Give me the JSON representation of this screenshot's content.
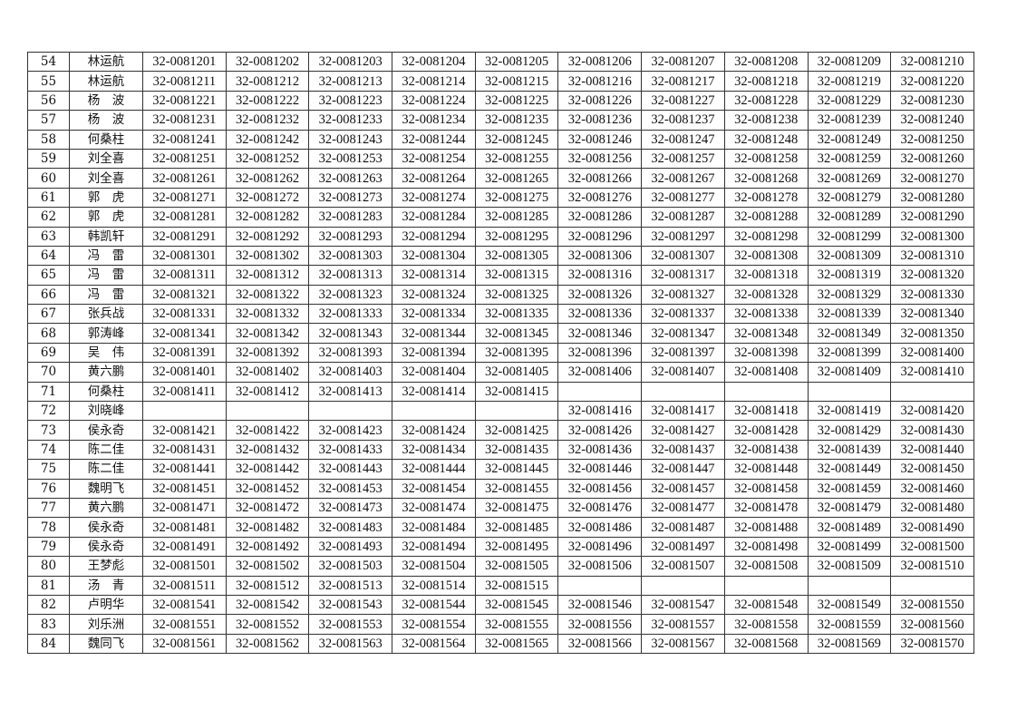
{
  "table": {
    "rows": [
      {
        "no": "54",
        "name": "林运航",
        "codes": [
          "32-0081201",
          "32-0081202",
          "32-0081203",
          "32-0081204",
          "32-0081205",
          "32-0081206",
          "32-0081207",
          "32-0081208",
          "32-0081209",
          "32-0081210"
        ]
      },
      {
        "no": "55",
        "name": "林运航",
        "codes": [
          "32-0081211",
          "32-0081212",
          "32-0081213",
          "32-0081214",
          "32-0081215",
          "32-0081216",
          "32-0081217",
          "32-0081218",
          "32-0081219",
          "32-0081220"
        ]
      },
      {
        "no": "56",
        "name": "杨　波",
        "codes": [
          "32-0081221",
          "32-0081222",
          "32-0081223",
          "32-0081224",
          "32-0081225",
          "32-0081226",
          "32-0081227",
          "32-0081228",
          "32-0081229",
          "32-0081230"
        ]
      },
      {
        "no": "57",
        "name": "杨　波",
        "codes": [
          "32-0081231",
          "32-0081232",
          "32-0081233",
          "32-0081234",
          "32-0081235",
          "32-0081236",
          "32-0081237",
          "32-0081238",
          "32-0081239",
          "32-0081240"
        ]
      },
      {
        "no": "58",
        "name": "何桑柱",
        "codes": [
          "32-0081241",
          "32-0081242",
          "32-0081243",
          "32-0081244",
          "32-0081245",
          "32-0081246",
          "32-0081247",
          "32-0081248",
          "32-0081249",
          "32-0081250"
        ]
      },
      {
        "no": "59",
        "name": "刘全喜",
        "codes": [
          "32-0081251",
          "32-0081252",
          "32-0081253",
          "32-0081254",
          "32-0081255",
          "32-0081256",
          "32-0081257",
          "32-0081258",
          "32-0081259",
          "32-0081260"
        ]
      },
      {
        "no": "60",
        "name": "刘全喜",
        "codes": [
          "32-0081261",
          "32-0081262",
          "32-0081263",
          "32-0081264",
          "32-0081265",
          "32-0081266",
          "32-0081267",
          "32-0081268",
          "32-0081269",
          "32-0081270"
        ]
      },
      {
        "no": "61",
        "name": "郭　虎",
        "codes": [
          "32-0081271",
          "32-0081272",
          "32-0081273",
          "32-0081274",
          "32-0081275",
          "32-0081276",
          "32-0081277",
          "32-0081278",
          "32-0081279",
          "32-0081280"
        ]
      },
      {
        "no": "62",
        "name": "郭　虎",
        "codes": [
          "32-0081281",
          "32-0081282",
          "32-0081283",
          "32-0081284",
          "32-0081285",
          "32-0081286",
          "32-0081287",
          "32-0081288",
          "32-0081289",
          "32-0081290"
        ]
      },
      {
        "no": "63",
        "name": "韩凯轩",
        "codes": [
          "32-0081291",
          "32-0081292",
          "32-0081293",
          "32-0081294",
          "32-0081295",
          "32-0081296",
          "32-0081297",
          "32-0081298",
          "32-0081299",
          "32-0081300"
        ]
      },
      {
        "no": "64",
        "name": "冯　雷",
        "codes": [
          "32-0081301",
          "32-0081302",
          "32-0081303",
          "32-0081304",
          "32-0081305",
          "32-0081306",
          "32-0081307",
          "32-0081308",
          "32-0081309",
          "32-0081310"
        ]
      },
      {
        "no": "65",
        "name": "冯　雷",
        "codes": [
          "32-0081311",
          "32-0081312",
          "32-0081313",
          "32-0081314",
          "32-0081315",
          "32-0081316",
          "32-0081317",
          "32-0081318",
          "32-0081319",
          "32-0081320"
        ]
      },
      {
        "no": "66",
        "name": "冯　雷",
        "codes": [
          "32-0081321",
          "32-0081322",
          "32-0081323",
          "32-0081324",
          "32-0081325",
          "32-0081326",
          "32-0081327",
          "32-0081328",
          "32-0081329",
          "32-0081330"
        ]
      },
      {
        "no": "67",
        "name": "张兵战",
        "codes": [
          "32-0081331",
          "32-0081332",
          "32-0081333",
          "32-0081334",
          "32-0081335",
          "32-0081336",
          "32-0081337",
          "32-0081338",
          "32-0081339",
          "32-0081340"
        ]
      },
      {
        "no": "68",
        "name": "郭涛峰",
        "codes": [
          "32-0081341",
          "32-0081342",
          "32-0081343",
          "32-0081344",
          "32-0081345",
          "32-0081346",
          "32-0081347",
          "32-0081348",
          "32-0081349",
          "32-0081350"
        ]
      },
      {
        "no": "69",
        "name": "吴　伟",
        "codes": [
          "32-0081391",
          "32-0081392",
          "32-0081393",
          "32-0081394",
          "32-0081395",
          "32-0081396",
          "32-0081397",
          "32-0081398",
          "32-0081399",
          "32-0081400"
        ]
      },
      {
        "no": "70",
        "name": "黄六鹏",
        "codes": [
          "32-0081401",
          "32-0081402",
          "32-0081403",
          "32-0081404",
          "32-0081405",
          "32-0081406",
          "32-0081407",
          "32-0081408",
          "32-0081409",
          "32-0081410"
        ]
      },
      {
        "no": "71",
        "name": "何桑柱",
        "codes": [
          "32-0081411",
          "32-0081412",
          "32-0081413",
          "32-0081414",
          "32-0081415",
          "",
          "",
          "",
          "",
          ""
        ]
      },
      {
        "no": "72",
        "name": "刘晓峰",
        "codes": [
          "",
          "",
          "",
          "",
          "",
          "32-0081416",
          "32-0081417",
          "32-0081418",
          "32-0081419",
          "32-0081420"
        ]
      },
      {
        "no": "73",
        "name": "侯永奇",
        "codes": [
          "32-0081421",
          "32-0081422",
          "32-0081423",
          "32-0081424",
          "32-0081425",
          "32-0081426",
          "32-0081427",
          "32-0081428",
          "32-0081429",
          "32-0081430"
        ]
      },
      {
        "no": "74",
        "name": "陈二佳",
        "codes": [
          "32-0081431",
          "32-0081432",
          "32-0081433",
          "32-0081434",
          "32-0081435",
          "32-0081436",
          "32-0081437",
          "32-0081438",
          "32-0081439",
          "32-0081440"
        ]
      },
      {
        "no": "75",
        "name": "陈二佳",
        "codes": [
          "32-0081441",
          "32-0081442",
          "32-0081443",
          "32-0081444",
          "32-0081445",
          "32-0081446",
          "32-0081447",
          "32-0081448",
          "32-0081449",
          "32-0081450"
        ]
      },
      {
        "no": "76",
        "name": "魏明飞",
        "codes": [
          "32-0081451",
          "32-0081452",
          "32-0081453",
          "32-0081454",
          "32-0081455",
          "32-0081456",
          "32-0081457",
          "32-0081458",
          "32-0081459",
          "32-0081460"
        ]
      },
      {
        "no": "77",
        "name": "黄六鹏",
        "codes": [
          "32-0081471",
          "32-0081472",
          "32-0081473",
          "32-0081474",
          "32-0081475",
          "32-0081476",
          "32-0081477",
          "32-0081478",
          "32-0081479",
          "32-0081480"
        ]
      },
      {
        "no": "78",
        "name": "侯永奇",
        "codes": [
          "32-0081481",
          "32-0081482",
          "32-0081483",
          "32-0081484",
          "32-0081485",
          "32-0081486",
          "32-0081487",
          "32-0081488",
          "32-0081489",
          "32-0081490"
        ]
      },
      {
        "no": "79",
        "name": "侯永奇",
        "codes": [
          "32-0081491",
          "32-0081492",
          "32-0081493",
          "32-0081494",
          "32-0081495",
          "32-0081496",
          "32-0081497",
          "32-0081498",
          "32-0081499",
          "32-0081500"
        ]
      },
      {
        "no": "80",
        "name": "王梦彪",
        "codes": [
          "32-0081501",
          "32-0081502",
          "32-0081503",
          "32-0081504",
          "32-0081505",
          "32-0081506",
          "32-0081507",
          "32-0081508",
          "32-0081509",
          "32-0081510"
        ]
      },
      {
        "no": "81",
        "name": "汤　青",
        "codes": [
          "32-0081511",
          "32-0081512",
          "32-0081513",
          "32-0081514",
          "32-0081515",
          "",
          "",
          "",
          "",
          ""
        ]
      },
      {
        "no": "82",
        "name": "卢明华",
        "codes": [
          "32-0081541",
          "32-0081542",
          "32-0081543",
          "32-0081544",
          "32-0081545",
          "32-0081546",
          "32-0081547",
          "32-0081548",
          "32-0081549",
          "32-0081550"
        ]
      },
      {
        "no": "83",
        "name": "刘乐洲",
        "codes": [
          "32-0081551",
          "32-0081552",
          "32-0081553",
          "32-0081554",
          "32-0081555",
          "32-0081556",
          "32-0081557",
          "32-0081558",
          "32-0081559",
          "32-0081560"
        ]
      },
      {
        "no": "84",
        "name": "魏同飞",
        "codes": [
          "32-0081561",
          "32-0081562",
          "32-0081563",
          "32-0081564",
          "32-0081565",
          "32-0081566",
          "32-0081567",
          "32-0081568",
          "32-0081569",
          "32-0081570"
        ]
      }
    ]
  }
}
